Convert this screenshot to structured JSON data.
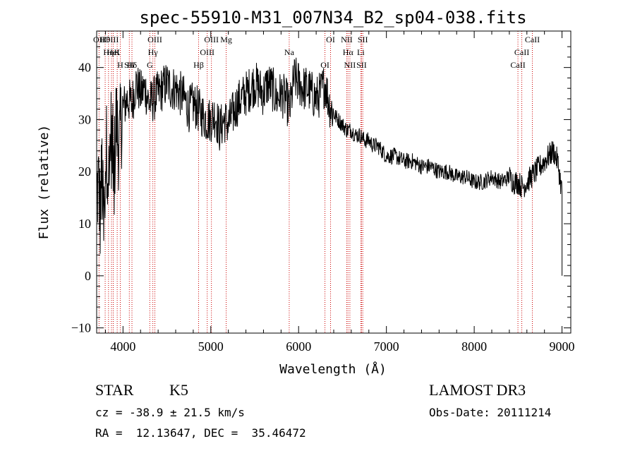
{
  "chart_data": {
    "type": "line",
    "title": "spec-55910-M31_007N34_B2_sp04-038.fits",
    "xlabel": "Wavelength (Å)",
    "ylabel": "Flux (relative)",
    "xlim": [
      3700,
      9100
    ],
    "ylim": [
      -11,
      47
    ],
    "xticks": [
      4000,
      5000,
      6000,
      7000,
      8000,
      9000
    ],
    "yticks": [
      -10,
      0,
      10,
      20,
      30,
      40
    ],
    "spectrum_envelope": {
      "x": [
        3700,
        3720,
        3740,
        3760,
        3780,
        3800,
        3820,
        3840,
        3860,
        3880,
        3900,
        3920,
        3940,
        3960,
        3980,
        4000,
        4050,
        4100,
        4150,
        4200,
        4250,
        4300,
        4350,
        4400,
        4450,
        4500,
        4550,
        4600,
        4650,
        4700,
        4750,
        4800,
        4850,
        4900,
        4950,
        5000,
        5050,
        5100,
        5150,
        5200,
        5250,
        5300,
        5350,
        5400,
        5450,
        5500,
        5550,
        5600,
        5650,
        5700,
        5750,
        5800,
        5850,
        5900,
        5950,
        6000,
        6050,
        6100,
        6150,
        6200,
        6250,
        6300,
        6350,
        6400,
        6450,
        6500,
        6550,
        6600,
        6650,
        6700,
        6750,
        6800,
        6850,
        6900,
        6950,
        7000,
        7100,
        7200,
        7300,
        7400,
        7500,
        7600,
        7700,
        7800,
        7900,
        8000,
        8100,
        8200,
        8300,
        8400,
        8450,
        8500,
        8550,
        8600,
        8650,
        8700,
        8750,
        8800,
        8850,
        8900,
        8950,
        9000
      ],
      "y": [
        15,
        18,
        12,
        20,
        8,
        22,
        25,
        18,
        28,
        24,
        20,
        30,
        27,
        25,
        30,
        32,
        34,
        33,
        37,
        35,
        36,
        33,
        34,
        35,
        36,
        37,
        36,
        36,
        35,
        34,
        32,
        33,
        32,
        31,
        30,
        30,
        31,
        28,
        30,
        29,
        31,
        33,
        34,
        35,
        36,
        37,
        36,
        35,
        37,
        36,
        34,
        35,
        34,
        32,
        38,
        37,
        36,
        36,
        35,
        34,
        35,
        37,
        33,
        31,
        30,
        29,
        28,
        28,
        27,
        27,
        26,
        26,
        25,
        25,
        24,
        23,
        23,
        22,
        22,
        21,
        21,
        20,
        20,
        19,
        19,
        18,
        18,
        19,
        18,
        19,
        18,
        18,
        17,
        18,
        19,
        20,
        21,
        22,
        23,
        24,
        22,
        16
      ]
    },
    "emission_lines": [
      {
        "label": "Hθ",
        "wave": 3797
      },
      {
        "label": "K",
        "wave": 3934
      },
      {
        "label": "Hδ",
        "wave": 4102
      },
      {
        "label": "OII",
        "wave": 3727
      },
      {
        "label": "HeI",
        "wave": 3889
      },
      {
        "label": "SII",
        "wave": 4072
      },
      {
        "label": "OIII",
        "wave": 3869
      },
      {
        "label": "Hη",
        "wave": 3835
      },
      {
        "label": "H",
        "wave": 3969
      },
      {
        "label": "OIII",
        "wave": 4363
      },
      {
        "label": "Hγ",
        "wave": 4340
      },
      {
        "label": "G",
        "wave": 4305
      },
      {
        "label": "OIII",
        "wave": 5007
      },
      {
        "label": "OIII",
        "wave": 4959
      },
      {
        "label": "Hβ",
        "wave": 4861
      },
      {
        "label": "Mg",
        "wave": 5175
      },
      {
        "label": "Na",
        "wave": 5893
      },
      {
        "label": "OI",
        "wave": 6300
      },
      {
        "label": "OI",
        "wave": 6364
      },
      {
        "label": "Hα",
        "wave": 6563
      },
      {
        "label": "SII",
        "wave": 6717
      },
      {
        "label": "NII",
        "wave": 6548
      },
      {
        "label": "Li",
        "wave": 6708
      },
      {
        "label": "NII",
        "wave": 6584
      },
      {
        "label": "SII",
        "wave": 6731
      },
      {
        "label": "CaII",
        "wave": 8542
      },
      {
        "label": "CaII",
        "wave": 8498
      },
      {
        "label": "CaII",
        "wave": 8662
      }
    ]
  },
  "info": {
    "classification": "STAR",
    "subclass": "K5",
    "survey": "LAMOST DR3",
    "redshift": "cz = -38.9 ± 21.5 km/s",
    "obs_date": "Obs-Date: 20111214",
    "coords": "RA =  12.13647, DEC =  35.46472"
  },
  "colors": {
    "axes": "#000000",
    "spectrum": "#000000",
    "line_marker": "#cc0000"
  }
}
